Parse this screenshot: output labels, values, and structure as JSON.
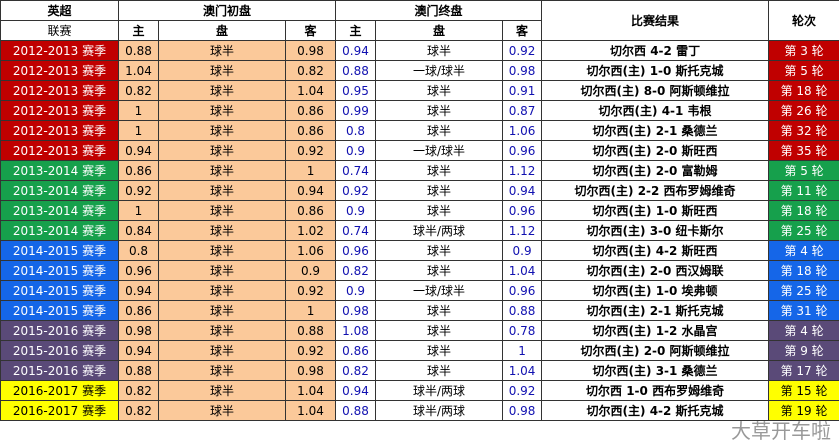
{
  "header": {
    "league": "英超",
    "league_sub": "联赛",
    "initial": "澳门初盘",
    "final": "澳门终盘",
    "result": "比赛结果",
    "round": "轮次",
    "home": "主",
    "line": "盘",
    "away": "客"
  },
  "colors": {
    "2012-2013": "#c00000",
    "2013-2014": "#16a04c",
    "2014-2015": "#1566e8",
    "2015-2016": "#5a4a78",
    "2016-2017": "#ffff00",
    "initial_bg": "#fbc99a",
    "final_text": "#1010b0"
  },
  "watermark": "大草开车啦",
  "rows": [
    {
      "season": "2012-2013 赛季",
      "ih": "0.88",
      "il": "球半",
      "ia": "0.98",
      "fh": "0.94",
      "fl": "球半",
      "fa": "0.92",
      "result": "切尔西 4-2 雷丁",
      "round": "第 3 轮"
    },
    {
      "season": "2012-2013 赛季",
      "ih": "1.04",
      "il": "球半",
      "ia": "0.82",
      "fh": "0.88",
      "fl": "一球/球半",
      "fa": "0.98",
      "result": "切尔西(主) 1-0 斯托克城",
      "round": "第 5 轮"
    },
    {
      "season": "2012-2013 赛季",
      "ih": "0.82",
      "il": "球半",
      "ia": "1.04",
      "fh": "0.95",
      "fl": "球半",
      "fa": "0.91",
      "result": "切尔西(主) 8-0 阿斯顿维拉",
      "round": "第 18 轮"
    },
    {
      "season": "2012-2013 赛季",
      "ih": "1",
      "il": "球半",
      "ia": "0.86",
      "fh": "0.99",
      "fl": "球半",
      "fa": "0.87",
      "result": "切尔西(主) 4-1 韦根",
      "round": "第 26 轮"
    },
    {
      "season": "2012-2013 赛季",
      "ih": "1",
      "il": "球半",
      "ia": "0.86",
      "fh": "0.8",
      "fl": "球半",
      "fa": "1.06",
      "result": "切尔西(主) 2-1 桑德兰",
      "round": "第 32 轮"
    },
    {
      "season": "2012-2013 赛季",
      "ih": "0.94",
      "il": "球半",
      "ia": "0.92",
      "fh": "0.9",
      "fl": "一球/球半",
      "fa": "0.96",
      "result": "切尔西(主) 2-0 斯旺西",
      "round": "第 35 轮"
    },
    {
      "season": "2013-2014 赛季",
      "ih": "0.86",
      "il": "球半",
      "ia": "1",
      "fh": "0.74",
      "fl": "球半",
      "fa": "1.12",
      "result": "切尔西(主) 2-0 富勒姆",
      "round": "第 5 轮"
    },
    {
      "season": "2013-2014 赛季",
      "ih": "0.92",
      "il": "球半",
      "ia": "0.94",
      "fh": "0.92",
      "fl": "球半",
      "fa": "0.94",
      "result": "切尔西(主) 2-2 西布罗姆维奇",
      "round": "第 11 轮"
    },
    {
      "season": "2013-2014 赛季",
      "ih": "1",
      "il": "球半",
      "ia": "0.86",
      "fh": "0.9",
      "fl": "球半",
      "fa": "0.96",
      "result": "切尔西(主) 1-0 斯旺西",
      "round": "第 18 轮"
    },
    {
      "season": "2013-2014 赛季",
      "ih": "0.84",
      "il": "球半",
      "ia": "1.02",
      "fh": "0.74",
      "fl": "球半/两球",
      "fa": "1.12",
      "result": "切尔西(主) 3-0 纽卡斯尔",
      "round": "第 25 轮"
    },
    {
      "season": "2014-2015 赛季",
      "ih": "0.8",
      "il": "球半",
      "ia": "1.06",
      "fh": "0.96",
      "fl": "球半",
      "fa": "0.9",
      "result": "切尔西(主) 4-2 斯旺西",
      "round": "第 4 轮"
    },
    {
      "season": "2014-2015 赛季",
      "ih": "0.96",
      "il": "球半",
      "ia": "0.9",
      "fh": "0.82",
      "fl": "球半",
      "fa": "1.04",
      "result": "切尔西(主) 2-0 西汉姆联",
      "round": "第 18 轮"
    },
    {
      "season": "2014-2015 赛季",
      "ih": "0.94",
      "il": "球半",
      "ia": "0.92",
      "fh": "0.9",
      "fl": "一球/球半",
      "fa": "0.96",
      "result": "切尔西(主) 1-0 埃弗顿",
      "round": "第 25 轮"
    },
    {
      "season": "2014-2015 赛季",
      "ih": "0.86",
      "il": "球半",
      "ia": "1",
      "fh": "0.98",
      "fl": "球半",
      "fa": "0.88",
      "result": "切尔西(主) 2-1 斯托克城",
      "round": "第 31 轮"
    },
    {
      "season": "2015-2016 赛季",
      "ih": "0.98",
      "il": "球半",
      "ia": "0.88",
      "fh": "1.08",
      "fl": "球半",
      "fa": "0.78",
      "result": "切尔西(主) 1-2 水晶宫",
      "round": "第 4 轮"
    },
    {
      "season": "2015-2016 赛季",
      "ih": "0.94",
      "il": "球半",
      "ia": "0.92",
      "fh": "0.86",
      "fl": "球半",
      "fa": "1",
      "result": "切尔西(主) 2-0 阿斯顿维拉",
      "round": "第 9 轮"
    },
    {
      "season": "2015-2016 赛季",
      "ih": "0.88",
      "il": "球半",
      "ia": "0.98",
      "fh": "0.82",
      "fl": "球半",
      "fa": "1.04",
      "result": "切尔西(主) 3-1 桑德兰",
      "round": "第 17 轮"
    },
    {
      "season": "2016-2017 赛季",
      "ih": "0.82",
      "il": "球半",
      "ia": "1.04",
      "fh": "0.94",
      "fl": "球半/两球",
      "fa": "0.92",
      "result": "切尔西 1-0 西布罗姆维奇",
      "round": "第 15 轮"
    },
    {
      "season": "2016-2017 赛季",
      "ih": "0.82",
      "il": "球半",
      "ia": "1.04",
      "fh": "0.88",
      "fl": "球半/两球",
      "fa": "0.98",
      "result": "切尔西(主) 4-2 斯托克城",
      "round": "第 19 轮"
    }
  ]
}
